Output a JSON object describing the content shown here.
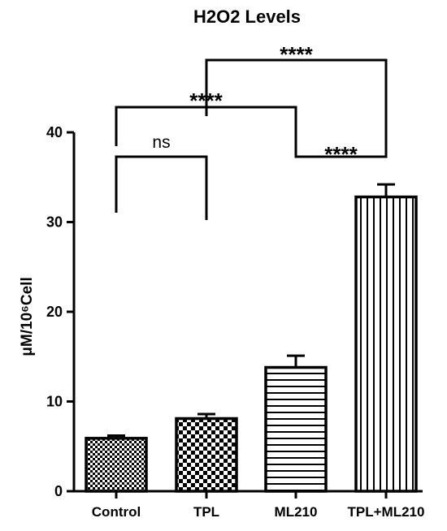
{
  "chart_data": {
    "type": "bar",
    "title": "H2O2 Levels",
    "ylabel": "μM/10⁶Cell",
    "xlabel": "",
    "ylim": [
      0,
      40
    ],
    "yticks": [
      0,
      10,
      20,
      30,
      40
    ],
    "categories": [
      "Control",
      "TPL",
      "ML210",
      "TPL+ML210"
    ],
    "values": [
      5.9,
      8.1,
      13.8,
      32.8
    ],
    "errors": [
      0.3,
      0.5,
      1.3,
      1.4
    ],
    "patterns": [
      "checker-fine",
      "checker-coarse",
      "horizontal-lines",
      "vertical-lines"
    ],
    "grid": false,
    "significance": [
      {
        "from": 0,
        "to": 1,
        "label": "ns"
      },
      {
        "from": 0,
        "to": 2,
        "label": "****"
      },
      {
        "from": 2,
        "to": 3,
        "label": "****"
      },
      {
        "from": 1,
        "to": 3,
        "label": "****"
      }
    ]
  }
}
